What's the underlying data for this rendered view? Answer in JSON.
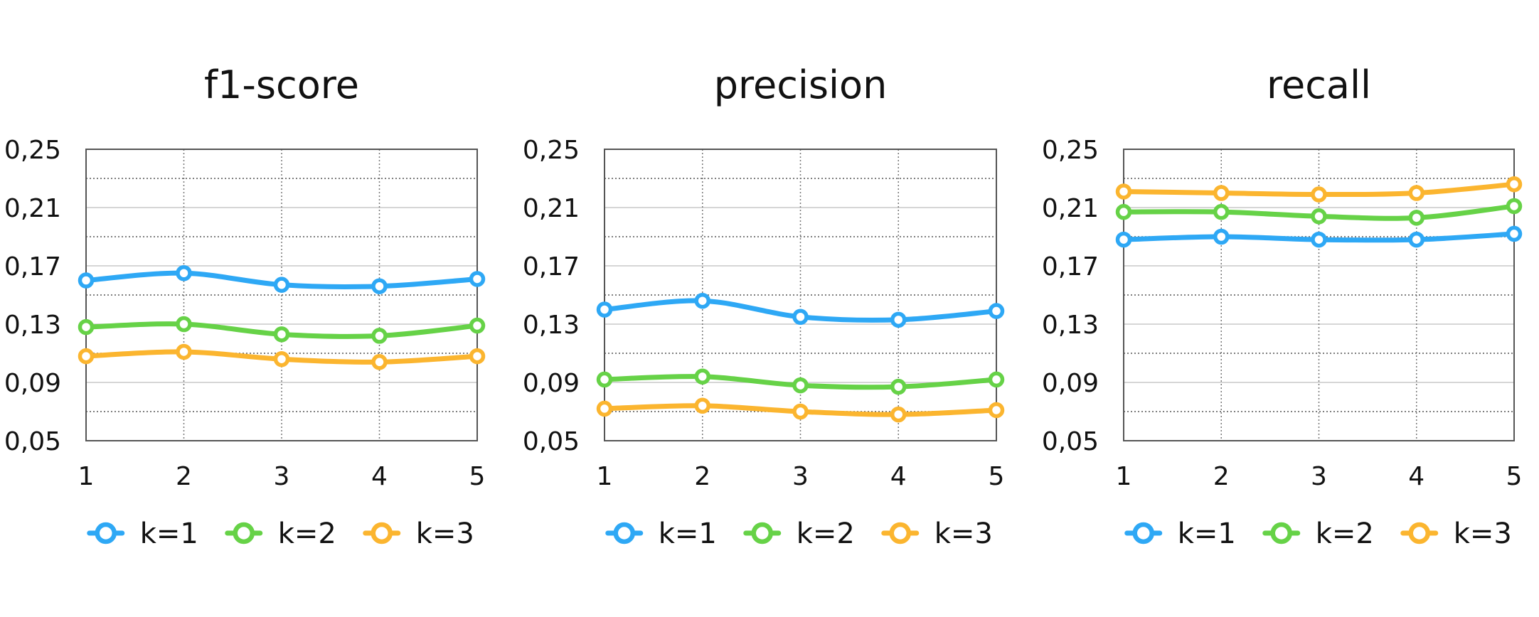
{
  "colors": {
    "k1": "#2ea8f5",
    "k2": "#66d247",
    "k3": "#fbb52f"
  },
  "chart_data": [
    {
      "type": "line",
      "title": "f1-score",
      "x": [
        1,
        2,
        3,
        4,
        5
      ],
      "x_tick_labels": [
        "1",
        "2",
        "3",
        "4",
        "5"
      ],
      "ylim": [
        0.05,
        0.25
      ],
      "y_tick_labels": [
        "0,25",
        "0,21",
        "0,17",
        "0,13",
        "0,09",
        "0,05"
      ],
      "grid": true,
      "legend": "bottom",
      "series": [
        {
          "name": "k=1",
          "values": [
            0.16,
            0.165,
            0.157,
            0.156,
            0.161
          ]
        },
        {
          "name": "k=2",
          "values": [
            0.128,
            0.13,
            0.123,
            0.122,
            0.129
          ]
        },
        {
          "name": "k=3",
          "values": [
            0.108,
            0.111,
            0.106,
            0.104,
            0.108
          ]
        }
      ]
    },
    {
      "type": "line",
      "title": "precision",
      "x": [
        1,
        2,
        3,
        4,
        5
      ],
      "x_tick_labels": [
        "1",
        "2",
        "3",
        "4",
        "5"
      ],
      "ylim": [
        0.05,
        0.25
      ],
      "y_tick_labels": [
        "0,25",
        "0,21",
        "0,17",
        "0,13",
        "0,09",
        "0,05"
      ],
      "grid": true,
      "legend": "bottom",
      "series": [
        {
          "name": "k=1",
          "values": [
            0.14,
            0.146,
            0.135,
            0.133,
            0.139
          ]
        },
        {
          "name": "k=2",
          "values": [
            0.092,
            0.094,
            0.088,
            0.087,
            0.092
          ]
        },
        {
          "name": "k=3",
          "values": [
            0.072,
            0.074,
            0.07,
            0.068,
            0.071
          ]
        }
      ]
    },
    {
      "type": "line",
      "title": "recall",
      "x": [
        1,
        2,
        3,
        4,
        5
      ],
      "x_tick_labels": [
        "1",
        "2",
        "3",
        "4",
        "5"
      ],
      "ylim": [
        0.05,
        0.25
      ],
      "y_tick_labels": [
        "0,25",
        "0,21",
        "0,17",
        "0,13",
        "0,09",
        "0,05"
      ],
      "grid": true,
      "legend": "bottom",
      "series": [
        {
          "name": "k=1",
          "values": [
            0.188,
            0.19,
            0.188,
            0.188,
            0.192
          ]
        },
        {
          "name": "k=2",
          "values": [
            0.207,
            0.207,
            0.204,
            0.203,
            0.211
          ]
        },
        {
          "name": "k=3",
          "values": [
            0.221,
            0.22,
            0.219,
            0.22,
            0.226
          ]
        }
      ]
    }
  ]
}
